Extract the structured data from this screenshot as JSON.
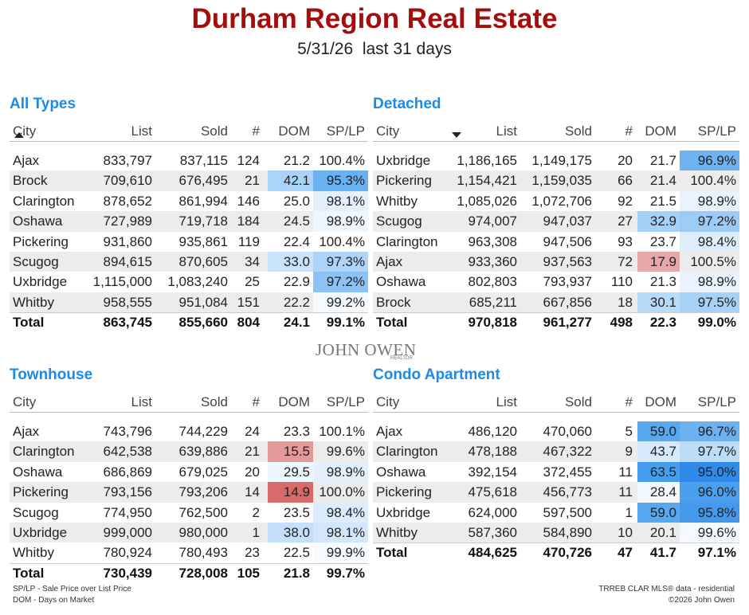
{
  "header": {
    "title": "Durham Region Real Estate",
    "date": "5/31/26",
    "period": "last 31 days"
  },
  "logo": {
    "name": "JOHN OWEN",
    "sub": "REALTOR"
  },
  "sections": [
    {
      "title": "All Types",
      "headers": [
        "City",
        "List",
        "Sold",
        "#",
        "DOM",
        "SP/LP"
      ],
      "rows": [
        [
          "Ajax",
          "833,797",
          "837,115",
          "124",
          "21.2",
          "100.4%"
        ],
        [
          "Brock",
          "709,610",
          "676,495",
          "21",
          "42.1",
          "95.3%"
        ],
        [
          "Clarington",
          "878,652",
          "861,994",
          "146",
          "25.0",
          "98.1%"
        ],
        [
          "Oshawa",
          "727,989",
          "719,718",
          "184",
          "24.5",
          "98.9%"
        ],
        [
          "Pickering",
          "931,860",
          "935,861",
          "119",
          "22.4",
          "100.4%"
        ],
        [
          "Scugog",
          "894,615",
          "870,605",
          "34",
          "33.0",
          "97.3%"
        ],
        [
          "Uxbridge",
          "1,115,000",
          "1,083,240",
          "25",
          "22.9",
          "97.2%"
        ],
        [
          "Whitby",
          "958,555",
          "951,084",
          "151",
          "22.2",
          "99.2%"
        ]
      ],
      "total": [
        "Total",
        "863,745",
        "855,660",
        "804",
        "24.1",
        "99.1%"
      ],
      "dom_colors": [
        null,
        "#a9d3f8",
        null,
        null,
        null,
        "#c9e3fa",
        null,
        null
      ],
      "splp_colors": [
        null,
        "#68b2f4",
        "#e4f1fd",
        "#eef6fe",
        null,
        "#acd5f8",
        "#8cc3f6",
        "#f5faff"
      ]
    },
    {
      "title": "Detached",
      "headers": [
        "City",
        "List",
        "Sold",
        "#",
        "DOM",
        "SP/LP"
      ],
      "rows": [
        [
          "Uxbridge",
          "1,186,165",
          "1,149,175",
          "20",
          "21.7",
          "96.9%"
        ],
        [
          "Pickering",
          "1,154,421",
          "1,159,035",
          "66",
          "21.4",
          "100.4%"
        ],
        [
          "Whitby",
          "1,085,026",
          "1,072,706",
          "92",
          "21.5",
          "98.9%"
        ],
        [
          "Scugog",
          "974,007",
          "947,037",
          "27",
          "32.9",
          "97.2%"
        ],
        [
          "Clarington",
          "963,308",
          "947,506",
          "93",
          "23.7",
          "98.4%"
        ],
        [
          "Ajax",
          "933,360",
          "937,563",
          "72",
          "17.9",
          "100.5%"
        ],
        [
          "Oshawa",
          "802,803",
          "793,937",
          "110",
          "21.3",
          "98.9%"
        ],
        [
          "Brock",
          "685,211",
          "667,856",
          "18",
          "30.1",
          "97.5%"
        ]
      ],
      "total": [
        "Total",
        "970,818",
        "961,277",
        "498",
        "22.3",
        "99.0%"
      ],
      "dom_colors": [
        null,
        null,
        null,
        "#a5d0f7",
        null,
        "#e6a8a8",
        null,
        "#b8dbf9"
      ],
      "splp_colors": [
        "#6fb3f3",
        null,
        "#e8f3fd",
        "#9ccbf5",
        "#deedfc",
        null,
        "#e8f3fd",
        "#a8d1f7"
      ]
    },
    {
      "title": "Townhouse",
      "headers": [
        "City",
        "List",
        "Sold",
        "#",
        "DOM",
        "SP/LP"
      ],
      "rows": [
        [
          "Ajax",
          "743,796",
          "744,229",
          "24",
          "23.3",
          "100.1%"
        ],
        [
          "Clarington",
          "642,538",
          "639,886",
          "21",
          "15.5",
          "99.6%"
        ],
        [
          "Oshawa",
          "686,869",
          "679,025",
          "20",
          "29.5",
          "98.9%"
        ],
        [
          "Pickering",
          "793,156",
          "793,206",
          "14",
          "14.9",
          "100.0%"
        ],
        [
          "Scugog",
          "774,950",
          "762,500",
          "2",
          "23.5",
          "98.4%"
        ],
        [
          "Uxbridge",
          "999,000",
          "980,000",
          "1",
          "38.0",
          "98.1%"
        ],
        [
          "Whitby",
          "780,924",
          "780,493",
          "23",
          "22.5",
          "99.9%"
        ]
      ],
      "total": [
        "Total",
        "730,439",
        "728,008",
        "105",
        "21.8",
        "99.7%"
      ],
      "dom_colors": [
        null,
        "#e39a9a",
        "#eef6fe",
        "#d96a6a",
        null,
        "#c4e0fa",
        null
      ],
      "splp_colors": [
        null,
        null,
        "#e4f1fd",
        null,
        "#dbecfc",
        "#d2e7fb",
        "#f6fbff"
      ]
    },
    {
      "title": "Condo Apartment",
      "headers": [
        "City",
        "List",
        "Sold",
        "#",
        "DOM",
        "SP/LP"
      ],
      "rows": [
        [
          "Ajax",
          "486,120",
          "470,060",
          "5",
          "59.0",
          "96.7%"
        ],
        [
          "Clarington",
          "478,188",
          "467,322",
          "9",
          "43.7",
          "97.7%"
        ],
        [
          "Oshawa",
          "392,154",
          "372,455",
          "11",
          "63.5",
          "95.0%"
        ],
        [
          "Pickering",
          "475,618",
          "456,773",
          "11",
          "28.4",
          "96.0%"
        ],
        [
          "Uxbridge",
          "624,000",
          "597,500",
          "1",
          "59.0",
          "95.8%"
        ],
        [
          "Whitby",
          "587,360",
          "584,890",
          "10",
          "20.1",
          "99.6%"
        ]
      ],
      "total": [
        "Total",
        "484,625",
        "470,726",
        "47",
        "41.7",
        "97.1%"
      ],
      "dom_colors": [
        "#58a8f0",
        "#d6eafb",
        "#489eee",
        "#f2f8fe",
        "#58a8f0",
        null
      ],
      "splp_colors": [
        "#6cb2f2",
        "#bcdcf8",
        "#2f8ae8",
        "#4a9fee",
        "#4499ed",
        "#f4f9ff"
      ]
    }
  ],
  "footer": {
    "note1": "SP/LP - Sale Price over List Price",
    "note2": "DOM - Days on Market",
    "source": "TRREB CLAR MLS® data - residential",
    "copyright": "©2026 John Owen"
  }
}
